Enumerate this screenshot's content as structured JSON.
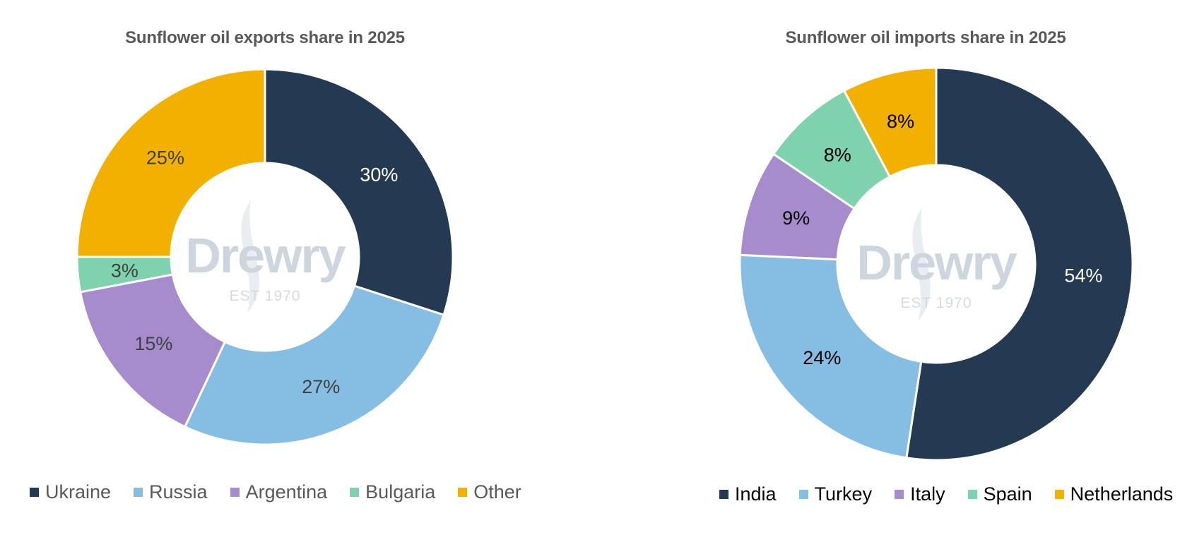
{
  "chart_data": [
    {
      "type": "pie",
      "title": "Sunflower oil exports share in 2025",
      "categories": [
        "Ukraine",
        "Russia",
        "Argentina",
        "Bulgaria",
        "Other"
      ],
      "values": [
        30,
        27,
        15,
        3,
        25
      ],
      "data_labels": [
        "30%",
        "27%",
        "15%",
        "3%",
        "25%"
      ],
      "colors": [
        "#243a52",
        "#86bde2",
        "#a68ccc",
        "#7ed2ae",
        "#f2b100"
      ],
      "label_colors": [
        "#ffffff",
        "#404040",
        "#404040",
        "#404040",
        "#404040"
      ],
      "legend_position": "bottom"
    },
    {
      "type": "pie",
      "title": "Sunflower oil imports share in 2025",
      "categories": [
        "India",
        "Turkey",
        "Italy",
        "Spain",
        "Netherlands"
      ],
      "values": [
        54,
        24,
        9,
        8,
        8
      ],
      "data_labels": [
        "54%",
        "24%",
        "9%",
        "8%",
        "8%"
      ],
      "colors": [
        "#243a52",
        "#86bde2",
        "#a68ccc",
        "#7ed2ae",
        "#f2b100"
      ],
      "label_colors": [
        "#ffffff",
        "#000000",
        "#000000",
        "#000000",
        "#000000"
      ],
      "legend_position": "bottom"
    }
  ],
  "watermark": {
    "brand": "Drewry",
    "tagline": "EST 1970"
  }
}
